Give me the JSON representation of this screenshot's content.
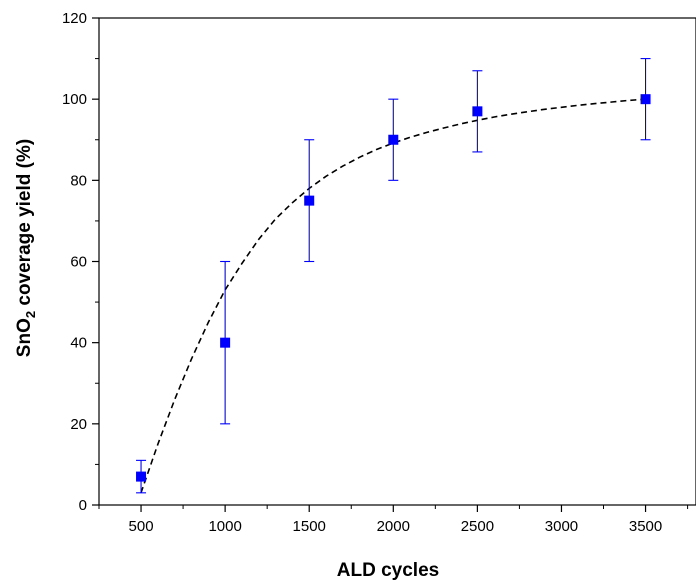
{
  "chart_data": {
    "type": "scatter",
    "xlabel": "ALD cycles",
    "ylabel_parts": {
      "pre": "SnO",
      "sub": "2",
      "post": " coverage yield (%)"
    },
    "xlim": [
      250,
      3800
    ],
    "ylim": [
      0,
      120
    ],
    "x_ticks": [
      500,
      1000,
      1500,
      2000,
      2500,
      3000,
      3500
    ],
    "y_ticks": [
      0,
      20,
      40,
      60,
      80,
      100,
      120
    ],
    "series": [
      {
        "x": [
          500,
          1000,
          1500,
          2000,
          2500,
          3500
        ],
        "y": [
          7,
          40,
          75,
          90,
          97,
          100
        ],
        "error_low": [
          3,
          20,
          60,
          80,
          87,
          90
        ],
        "error_high": [
          11,
          60,
          90,
          100,
          107,
          110
        ],
        "color": "#0000ff",
        "marker": "square"
      }
    ],
    "fit_curve": {
      "style": "dashed",
      "color": "#000000",
      "x": [
        500,
        600,
        700,
        800,
        900,
        1000,
        1100,
        1200,
        1300,
        1400,
        1500,
        1600,
        1700,
        1800,
        1900,
        2000,
        2100,
        2200,
        2300,
        2400,
        2500,
        2600,
        2700,
        2800,
        2900,
        3000,
        3100,
        3200,
        3300,
        3400,
        3500
      ],
      "y": [
        3,
        15,
        26,
        36,
        45,
        53,
        59.5,
        65.5,
        70.5,
        74.5,
        78,
        81,
        83.5,
        85.7,
        87.6,
        89.2,
        90.6,
        91.8,
        92.9,
        93.9,
        94.8,
        95.6,
        96.3,
        96.9,
        97.5,
        98,
        98.5,
        98.9,
        99.3,
        99.7,
        100
      ]
    },
    "grid": false,
    "legend": "none"
  }
}
